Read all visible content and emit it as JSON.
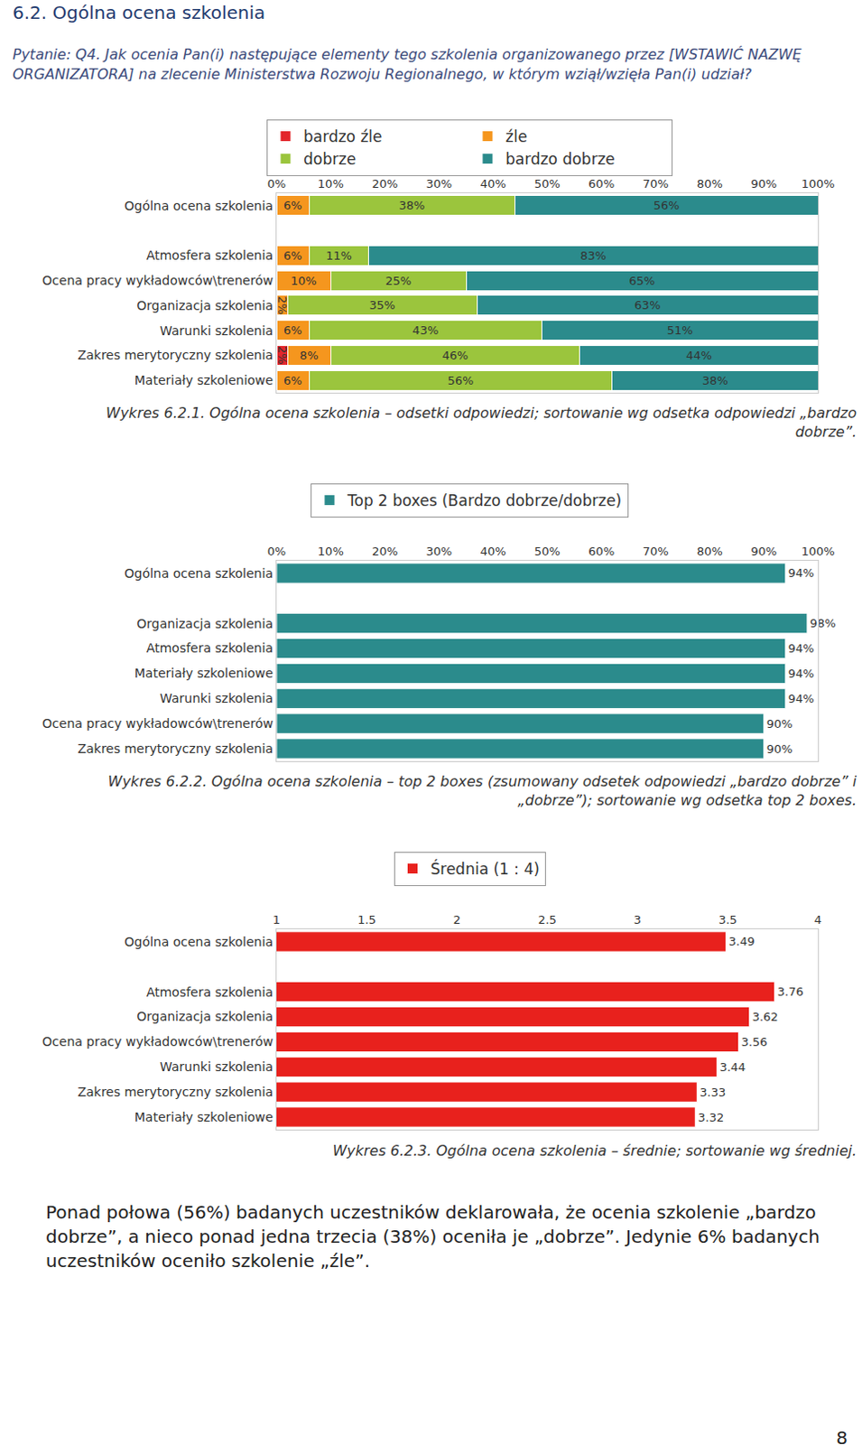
{
  "heading": "6.2. Ogólna ocena szkolenia",
  "question": "Pytanie: Q4. Jak ocenia Pan(i) następujące elementy tego szkolenia organizowanego przez [WSTAWIĆ NAZWĘ ORGANIZATORA] na zlecenie Ministerstwa Rozwoju Regionalnego, w którym wziął/wzięła Pan(i) udział?",
  "chart_data": [
    {
      "type": "bar",
      "orientation": "horizontal",
      "stacked": true,
      "data_labels": true,
      "legend": "top",
      "grid": false,
      "categories": [
        "Ogólna ocena szkolenia",
        "Atmosfera szkolenia",
        "Ocena pracy wykładowców\\trenerów",
        "Organizacja szkolenia",
        "Warunki szkolenia",
        "Zakres merytoryczny szkolenia",
        "Materiały szkoleniowe"
      ],
      "series": [
        {
          "name": "bardzo źle",
          "color": "#e3262b",
          "values": [
            null,
            null,
            null,
            null,
            null,
            2,
            null
          ],
          "value_labels": [
            null,
            null,
            null,
            null,
            null,
            "2%",
            null
          ]
        },
        {
          "name": "źle",
          "color": "#f5961e",
          "values": [
            6,
            6,
            10,
            2,
            6,
            8,
            6
          ],
          "value_labels": [
            "6%",
            "6%",
            "10%",
            "2%",
            "6%",
            "8%",
            "6%"
          ]
        },
        {
          "name": "dobrze",
          "color": "#9bc53d",
          "values": [
            38,
            11,
            25,
            35,
            43,
            46,
            56
          ],
          "value_labels": [
            "38%",
            "11%",
            "25%",
            "35%",
            "43%",
            "46%",
            "56%"
          ]
        },
        {
          "name": "bardzo dobrze",
          "color": "#2b8b8c",
          "values": [
            56,
            83,
            65,
            63,
            51,
            44,
            38
          ],
          "value_labels": [
            "56%",
            "83%",
            "65%",
            "63%",
            "51%",
            "44%",
            "38%"
          ]
        }
      ],
      "xlim": [
        0,
        100
      ],
      "xticks": [
        {
          "value": 0,
          "label": "0%"
        },
        {
          "value": 10,
          "label": "10%"
        },
        {
          "value": 20,
          "label": "20%"
        },
        {
          "value": 30,
          "label": "30%"
        },
        {
          "value": 40,
          "label": "40%"
        },
        {
          "value": 50,
          "label": "50%"
        },
        {
          "value": 60,
          "label": "60%"
        },
        {
          "value": 70,
          "label": "70%"
        },
        {
          "value": 80,
          "label": "80%"
        },
        {
          "value": 90,
          "label": "90%"
        },
        {
          "value": 100,
          "label": "100%"
        }
      ],
      "caption": "Wykres 6.2.1. Ogólna ocena szkolenia – odsetki odpowiedzi; sortowanie wg odsetka odpowiedzi „bardzo dobrze”."
    },
    {
      "type": "bar",
      "orientation": "horizontal",
      "data_labels": true,
      "legend": "top",
      "grid": false,
      "categories": [
        "Ogólna ocena szkolenia",
        "Organizacja szkolenia",
        "Atmosfera szkolenia",
        "Materiały szkoleniowe",
        "Warunki szkolenia",
        "Ocena pracy wykładowców\\trenerów",
        "Zakres merytoryczny szkolenia"
      ],
      "series": [
        {
          "name": "Top 2 boxes (Bardzo dobrze/dobrze)",
          "color": "#2b8b8c",
          "values": [
            94,
            98,
            94,
            94,
            94,
            90,
            90
          ],
          "value_labels": [
            "94%",
            "98%",
            "94%",
            "94%",
            "94%",
            "90%",
            "90%"
          ]
        }
      ],
      "xlim": [
        0,
        100
      ],
      "xticks": [
        {
          "value": 0,
          "label": "0%"
        },
        {
          "value": 10,
          "label": "10%"
        },
        {
          "value": 20,
          "label": "20%"
        },
        {
          "value": 30,
          "label": "30%"
        },
        {
          "value": 40,
          "label": "40%"
        },
        {
          "value": 50,
          "label": "50%"
        },
        {
          "value": 60,
          "label": "60%"
        },
        {
          "value": 70,
          "label": "70%"
        },
        {
          "value": 80,
          "label": "80%"
        },
        {
          "value": 90,
          "label": "90%"
        },
        {
          "value": 100,
          "label": "100%"
        }
      ],
      "caption": "Wykres 6.2.2. Ogólna ocena szkolenia – top 2 boxes (zsumowany odsetek odpowiedzi „bardzo dobrze” i „dobrze”); sortowanie wg odsetka top 2 boxes."
    },
    {
      "type": "bar",
      "orientation": "horizontal",
      "data_labels": true,
      "legend": "top",
      "grid": false,
      "categories": [
        "Ogólna ocena szkolenia",
        "Atmosfera szkolenia",
        "Organizacja szkolenia",
        "Ocena pracy wykładowców\\trenerów",
        "Warunki szkolenia",
        "Zakres merytoryczny szkolenia",
        "Materiały szkoleniowe"
      ],
      "series": [
        {
          "name": "Średnia (1 : 4)",
          "color": "#e8211d",
          "values": [
            3.49,
            3.76,
            3.62,
            3.56,
            3.44,
            3.33,
            3.32
          ]
        }
      ],
      "xlim": [
        1,
        4
      ],
      "xticks": [
        1,
        1.5,
        2,
        2.5,
        3,
        3.5,
        4
      ],
      "caption": "Wykres 6.2.3. Ogólna ocena szkolenia – średnie; sortowanie wg średniej."
    }
  ],
  "paragraph": "Ponad połowa (56%) badanych uczestników deklarowała, że ocenia szkolenie „bardzo dobrze”, a nieco ponad jedna trzecia (38%) oceniła je „dobrze”. Jedynie 6% badanych uczestników oceniło szkolenie „źle”.",
  "page_number": "8"
}
